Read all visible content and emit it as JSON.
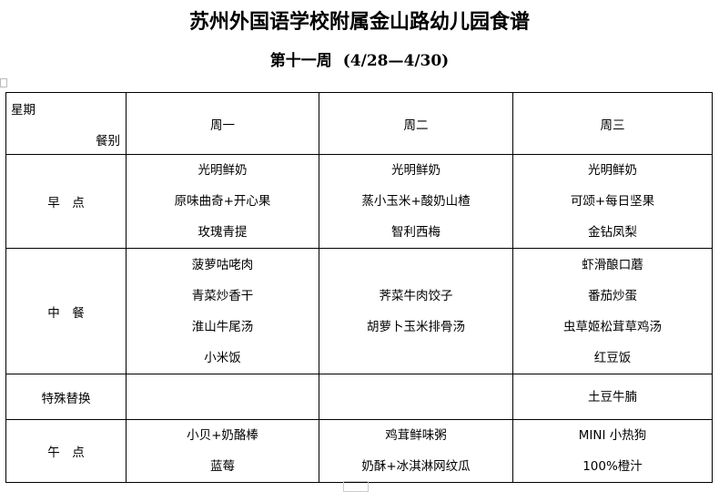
{
  "title": "苏州外国语学校附属金山路幼儿园食谱",
  "subtitle": {
    "week": "第十一周",
    "range": "(4/28—4/30)"
  },
  "table": {
    "corner": {
      "top": "星期",
      "bottom": "餐别"
    },
    "days": [
      "周一",
      "周二",
      "周三"
    ],
    "rows": [
      {
        "label": "早　点",
        "cells": [
          [
            "光明鲜奶",
            "原味曲奇+开心果",
            "玫瑰青提"
          ],
          [
            "光明鲜奶",
            "蒸小玉米+酸奶山楂",
            "智利西梅"
          ],
          [
            "光明鲜奶",
            "可颂+每日坚果",
            "金钻凤梨"
          ]
        ]
      },
      {
        "label": "中　餐",
        "cells": [
          [
            "菠萝咕咾肉",
            "青菜炒香干",
            "淮山牛尾汤",
            "小米饭"
          ],
          [
            "荠菜牛肉饺子",
            "胡萝卜玉米排骨汤"
          ],
          [
            "虾滑酿口蘑",
            "番茄炒蛋",
            "虫草姬松茸草鸡汤",
            "红豆饭"
          ]
        ]
      },
      {
        "label": "特殊替换",
        "cells": [
          [],
          [],
          [
            "土豆牛腩"
          ]
        ]
      },
      {
        "label": "午　点",
        "cells": [
          [
            "小贝+奶酪棒",
            "蓝莓"
          ],
          [
            "鸡茸鲜味粥",
            "奶酥+冰淇淋网纹瓜"
          ],
          [
            "MINI 小热狗",
            "100%橙汁"
          ]
        ]
      }
    ]
  }
}
